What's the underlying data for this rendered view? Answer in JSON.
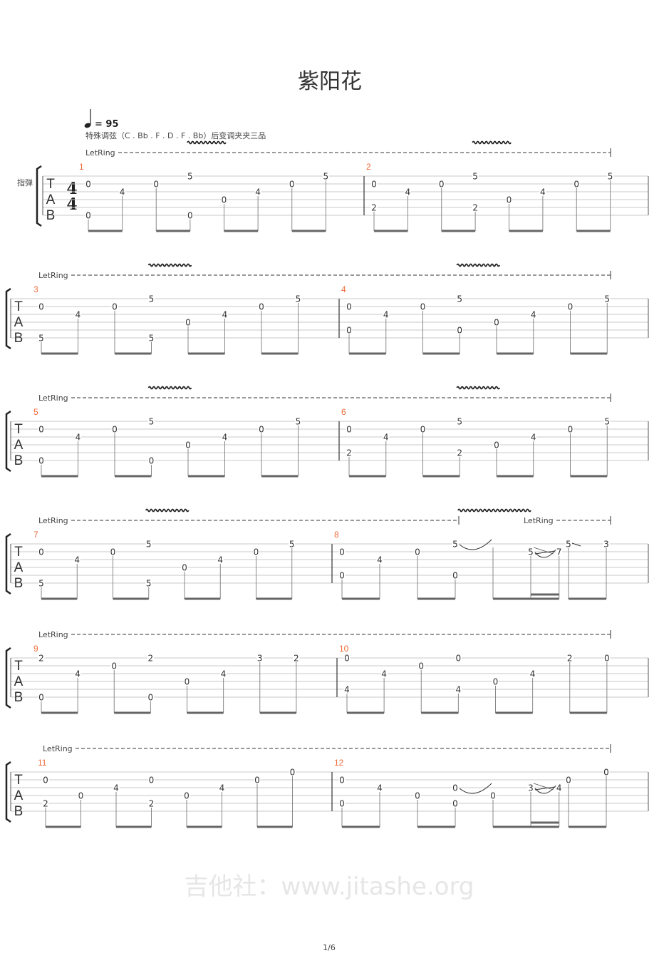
{
  "title": "紫阳花",
  "tempo": {
    "icon": "quarter-note-icon",
    "label": "= 95"
  },
  "tuning_note": "特殊调弦（C . Bb . F . D . F . Bb）后变调夹夹三品",
  "instrument": "指弹",
  "time_signature": {
    "top": "4",
    "bottom": "4"
  },
  "tab_clef": [
    "T",
    "A",
    "B"
  ],
  "let_ring_label": "LetRing",
  "watermark": "吉他社：www.jitashe.org",
  "page": "1/6",
  "colors": {
    "measure_number": "#f26b3a",
    "notes": "#333333",
    "staff": "#c8c8c8",
    "beam": "#666666"
  },
  "systems": [
    {
      "measures": [
        1,
        2
      ],
      "let_ring": [
        {
          "from": [
            1,
            0
          ],
          "to": [
            2,
            8
          ]
        }
      ]
    },
    {
      "measures": [
        3,
        4
      ],
      "let_ring": [
        {
          "from": [
            3,
            0
          ],
          "to": [
            4,
            8
          ]
        }
      ]
    },
    {
      "measures": [
        5,
        6
      ],
      "let_ring": [
        {
          "from": [
            5,
            0
          ],
          "to": [
            6,
            8
          ]
        }
      ]
    },
    {
      "measures": [
        7,
        8
      ],
      "let_ring": [
        {
          "from": [
            7,
            0
          ],
          "to": [
            8,
            3
          ]
        },
        {
          "from": [
            8,
            5
          ],
          "to": [
            8,
            8
          ]
        }
      ]
    },
    {
      "measures": [
        9,
        10
      ],
      "let_ring": [
        {
          "from": [
            9,
            0
          ],
          "to": [
            10,
            8
          ]
        }
      ]
    },
    {
      "measures": [
        11,
        12
      ],
      "let_ring": [
        {
          "from": [
            11,
            0
          ],
          "to": [
            12,
            8
          ]
        }
      ]
    }
  ],
  "measures": [
    {
      "number": "1",
      "vibrato": [
        3,
        4
      ],
      "events": [
        {
          "pos": 0,
          "notes": [
            {
              "s": 2,
              "f": "0"
            },
            {
              "s": 6,
              "f": "0"
            }
          ]
        },
        {
          "pos": 1,
          "notes": [
            {
              "s": 3,
              "f": "4"
            }
          ]
        },
        {
          "pos": 2,
          "notes": [
            {
              "s": 2,
              "f": "0"
            }
          ]
        },
        {
          "pos": 3,
          "notes": [
            {
              "s": 1,
              "f": "5"
            },
            {
              "s": 6,
              "f": "0"
            }
          ]
        },
        {
          "pos": 4,
          "notes": [
            {
              "s": 4,
              "f": "0"
            }
          ]
        },
        {
          "pos": 5,
          "notes": [
            {
              "s": 3,
              "f": "4"
            }
          ]
        },
        {
          "pos": 6,
          "notes": [
            {
              "s": 2,
              "f": "0"
            }
          ]
        },
        {
          "pos": 7,
          "notes": [
            {
              "s": 1,
              "f": "5"
            }
          ]
        }
      ]
    },
    {
      "number": "2",
      "vibrato": [
        3,
        4
      ],
      "events": [
        {
          "pos": 0,
          "notes": [
            {
              "s": 2,
              "f": "0"
            },
            {
              "s": 5,
              "f": "2"
            }
          ]
        },
        {
          "pos": 1,
          "notes": [
            {
              "s": 3,
              "f": "4"
            }
          ]
        },
        {
          "pos": 2,
          "notes": [
            {
              "s": 2,
              "f": "0"
            }
          ]
        },
        {
          "pos": 3,
          "notes": [
            {
              "s": 1,
              "f": "5"
            },
            {
              "s": 5,
              "f": "2"
            }
          ]
        },
        {
          "pos": 4,
          "notes": [
            {
              "s": 4,
              "f": "0"
            }
          ]
        },
        {
          "pos": 5,
          "notes": [
            {
              "s": 3,
              "f": "4"
            }
          ]
        },
        {
          "pos": 6,
          "notes": [
            {
              "s": 2,
              "f": "0"
            }
          ]
        },
        {
          "pos": 7,
          "notes": [
            {
              "s": 1,
              "f": "5"
            }
          ]
        }
      ]
    },
    {
      "number": "3",
      "vibrato": [
        3,
        3.8
      ],
      "events": [
        {
          "pos": 0,
          "notes": [
            {
              "s": 2,
              "f": "0"
            },
            {
              "s": 6,
              "f": "5"
            }
          ]
        },
        {
          "pos": 1,
          "notes": [
            {
              "s": 3,
              "f": "4"
            }
          ]
        },
        {
          "pos": 2,
          "notes": [
            {
              "s": 2,
              "f": "0"
            }
          ]
        },
        {
          "pos": 3,
          "notes": [
            {
              "s": 1,
              "f": "5"
            },
            {
              "s": 6,
              "f": "5"
            }
          ]
        },
        {
          "pos": 4,
          "notes": [
            {
              "s": 4,
              "f": "0"
            }
          ]
        },
        {
          "pos": 5,
          "notes": [
            {
              "s": 3,
              "f": "4"
            }
          ]
        },
        {
          "pos": 6,
          "notes": [
            {
              "s": 2,
              "f": "0"
            }
          ]
        },
        {
          "pos": 7,
          "notes": [
            {
              "s": 1,
              "f": "5"
            }
          ]
        }
      ]
    },
    {
      "number": "4",
      "vibrato": [
        3,
        3.8
      ],
      "events": [
        {
          "pos": 0,
          "notes": [
            {
              "s": 2,
              "f": "0"
            },
            {
              "s": 5,
              "f": "0"
            }
          ]
        },
        {
          "pos": 1,
          "notes": [
            {
              "s": 3,
              "f": "4"
            }
          ]
        },
        {
          "pos": 2,
          "notes": [
            {
              "s": 2,
              "f": "0"
            }
          ]
        },
        {
          "pos": 3,
          "notes": [
            {
              "s": 1,
              "f": "5"
            },
            {
              "s": 5,
              "f": "0"
            }
          ]
        },
        {
          "pos": 4,
          "notes": [
            {
              "s": 4,
              "f": "0"
            }
          ]
        },
        {
          "pos": 5,
          "notes": [
            {
              "s": 3,
              "f": "4"
            }
          ]
        },
        {
          "pos": 6,
          "notes": [
            {
              "s": 2,
              "f": "0"
            }
          ]
        },
        {
          "pos": 7,
          "notes": [
            {
              "s": 1,
              "f": "5"
            }
          ]
        }
      ]
    },
    {
      "number": "5",
      "vibrato": [
        3,
        3.8
      ],
      "events": [
        {
          "pos": 0,
          "notes": [
            {
              "s": 2,
              "f": "0"
            },
            {
              "s": 6,
              "f": "0"
            }
          ]
        },
        {
          "pos": 1,
          "notes": [
            {
              "s": 3,
              "f": "4"
            }
          ]
        },
        {
          "pos": 2,
          "notes": [
            {
              "s": 2,
              "f": "0"
            }
          ]
        },
        {
          "pos": 3,
          "notes": [
            {
              "s": 1,
              "f": "5"
            },
            {
              "s": 6,
              "f": "0"
            }
          ]
        },
        {
          "pos": 4,
          "notes": [
            {
              "s": 4,
              "f": "0"
            }
          ]
        },
        {
          "pos": 5,
          "notes": [
            {
              "s": 3,
              "f": "4"
            }
          ]
        },
        {
          "pos": 6,
          "notes": [
            {
              "s": 2,
              "f": "0"
            }
          ]
        },
        {
          "pos": 7,
          "notes": [
            {
              "s": 1,
              "f": "5"
            }
          ]
        }
      ]
    },
    {
      "number": "6",
      "vibrato": [
        3,
        3.8
      ],
      "events": [
        {
          "pos": 0,
          "notes": [
            {
              "s": 2,
              "f": "0"
            },
            {
              "s": 5,
              "f": "2"
            }
          ]
        },
        {
          "pos": 1,
          "notes": [
            {
              "s": 3,
              "f": "4"
            }
          ]
        },
        {
          "pos": 2,
          "notes": [
            {
              "s": 2,
              "f": "0"
            }
          ]
        },
        {
          "pos": 3,
          "notes": [
            {
              "s": 1,
              "f": "5"
            },
            {
              "s": 5,
              "f": "2"
            }
          ]
        },
        {
          "pos": 4,
          "notes": [
            {
              "s": 4,
              "f": "0"
            }
          ]
        },
        {
          "pos": 5,
          "notes": [
            {
              "s": 3,
              "f": "4"
            }
          ]
        },
        {
          "pos": 6,
          "notes": [
            {
              "s": 2,
              "f": "0"
            }
          ]
        },
        {
          "pos": 7,
          "notes": [
            {
              "s": 1,
              "f": "5"
            }
          ]
        }
      ]
    },
    {
      "number": "7",
      "vibrato": [
        3,
        3.8
      ],
      "events": [
        {
          "pos": 0,
          "notes": [
            {
              "s": 2,
              "f": "0"
            },
            {
              "s": 6,
              "f": "5"
            }
          ]
        },
        {
          "pos": 1,
          "notes": [
            {
              "s": 3,
              "f": "4"
            }
          ]
        },
        {
          "pos": 2,
          "notes": [
            {
              "s": 2,
              "f": "0"
            }
          ]
        },
        {
          "pos": 3,
          "notes": [
            {
              "s": 1,
              "f": "5"
            },
            {
              "s": 6,
              "f": "5"
            }
          ]
        },
        {
          "pos": 4,
          "notes": [
            {
              "s": 4,
              "f": "0"
            }
          ]
        },
        {
          "pos": 5,
          "notes": [
            {
              "s": 3,
              "f": "4"
            }
          ]
        },
        {
          "pos": 6,
          "notes": [
            {
              "s": 2,
              "f": "0"
            }
          ]
        },
        {
          "pos": 7,
          "notes": [
            {
              "s": 1,
              "f": "5"
            }
          ]
        }
      ]
    },
    {
      "number": "8",
      "vibrato": [
        2.9,
        4.7
      ],
      "events": [
        {
          "pos": 0,
          "notes": [
            {
              "s": 2,
              "f": "0"
            },
            {
              "s": 5,
              "f": "0"
            }
          ]
        },
        {
          "pos": 1,
          "notes": [
            {
              "s": 3,
              "f": "4"
            }
          ]
        },
        {
          "pos": 2,
          "notes": [
            {
              "s": 2,
              "f": "0"
            }
          ]
        },
        {
          "pos": 3,
          "notes": [
            {
              "s": 1,
              "f": "5",
              "tech": "tie"
            },
            {
              "s": 5,
              "f": "0"
            }
          ]
        },
        {
          "pos": 4,
          "notes": [
            {
              "s": 1,
              "f": "5",
              "tied": true
            }
          ]
        },
        {
          "pos": 5,
          "notes": [
            {
              "s": 2,
              "f": "5",
              "tech": "hammer-slide"
            }
          ]
        },
        {
          "pos": 5.5,
          "notes": [
            {
              "s": 2,
              "f": "7"
            }
          ]
        },
        {
          "pos": 6,
          "notes": [
            {
              "s": 1,
              "f": "5",
              "tech": "slide-out"
            }
          ]
        },
        {
          "pos": 7,
          "notes": [
            {
              "s": 1,
              "f": "3"
            }
          ]
        }
      ]
    },
    {
      "number": "9",
      "vibrato": [],
      "events": [
        {
          "pos": 0,
          "notes": [
            {
              "s": 1,
              "f": "2"
            },
            {
              "s": 6,
              "f": "0"
            }
          ]
        },
        {
          "pos": 1,
          "notes": [
            {
              "s": 3,
              "f": "4"
            }
          ]
        },
        {
          "pos": 2,
          "notes": [
            {
              "s": 2,
              "f": "0"
            }
          ]
        },
        {
          "pos": 3,
          "notes": [
            {
              "s": 1,
              "f": "2"
            },
            {
              "s": 6,
              "f": "0"
            }
          ]
        },
        {
          "pos": 4,
          "notes": [
            {
              "s": 4,
              "f": "0"
            }
          ]
        },
        {
          "pos": 5,
          "notes": [
            {
              "s": 3,
              "f": "4"
            }
          ]
        },
        {
          "pos": 6,
          "notes": [
            {
              "s": 1,
              "f": "3"
            }
          ]
        },
        {
          "pos": 7,
          "notes": [
            {
              "s": 1,
              "f": "2"
            }
          ]
        }
      ]
    },
    {
      "number": "10",
      "vibrato": [],
      "events": [
        {
          "pos": 0,
          "notes": [
            {
              "s": 1,
              "f": "0"
            },
            {
              "s": 5,
              "f": "4"
            }
          ]
        },
        {
          "pos": 1,
          "notes": [
            {
              "s": 3,
              "f": "4"
            }
          ]
        },
        {
          "pos": 2,
          "notes": [
            {
              "s": 2,
              "f": "0"
            }
          ]
        },
        {
          "pos": 3,
          "notes": [
            {
              "s": 1,
              "f": "0"
            },
            {
              "s": 5,
              "f": "4"
            }
          ]
        },
        {
          "pos": 4,
          "notes": [
            {
              "s": 4,
              "f": "0"
            }
          ]
        },
        {
          "pos": 5,
          "notes": [
            {
              "s": 3,
              "f": "4"
            }
          ]
        },
        {
          "pos": 6,
          "notes": [
            {
              "s": 1,
              "f": "2"
            }
          ]
        },
        {
          "pos": 7,
          "notes": [
            {
              "s": 1,
              "f": "0"
            }
          ]
        }
      ]
    },
    {
      "number": "11",
      "vibrato": [],
      "events": [
        {
          "pos": 0,
          "notes": [
            {
              "s": 2,
              "f": "0"
            },
            {
              "s": 5,
              "f": "2"
            }
          ]
        },
        {
          "pos": 1,
          "notes": [
            {
              "s": 4,
              "f": "0"
            }
          ]
        },
        {
          "pos": 2,
          "notes": [
            {
              "s": 3,
              "f": "4"
            }
          ]
        },
        {
          "pos": 3,
          "notes": [
            {
              "s": 2,
              "f": "0"
            },
            {
              "s": 5,
              "f": "2"
            }
          ]
        },
        {
          "pos": 4,
          "notes": [
            {
              "s": 4,
              "f": "0"
            }
          ]
        },
        {
          "pos": 5,
          "notes": [
            {
              "s": 3,
              "f": "4"
            }
          ]
        },
        {
          "pos": 6,
          "notes": [
            {
              "s": 2,
              "f": "0"
            }
          ]
        },
        {
          "pos": 7,
          "notes": [
            {
              "s": 1,
              "f": "0"
            }
          ]
        }
      ]
    },
    {
      "number": "12",
      "vibrato": [],
      "events": [
        {
          "pos": 0,
          "notes": [
            {
              "s": 2,
              "f": "0"
            },
            {
              "s": 5,
              "f": "0"
            }
          ]
        },
        {
          "pos": 1,
          "notes": [
            {
              "s": 3,
              "f": "4"
            }
          ]
        },
        {
          "pos": 2,
          "notes": [
            {
              "s": 4,
              "f": "0"
            }
          ]
        },
        {
          "pos": 3,
          "notes": [
            {
              "s": 3,
              "f": "0",
              "tech": "tie"
            },
            {
              "s": 5,
              "f": "0"
            }
          ]
        },
        {
          "pos": 4,
          "notes": [
            {
              "s": 3,
              "f": "0",
              "tied": true
            },
            {
              "s": 4,
              "f": "0"
            }
          ]
        },
        {
          "pos": 5,
          "notes": [
            {
              "s": 3,
              "f": "3",
              "tech": "hammer-slide"
            }
          ]
        },
        {
          "pos": 5.5,
          "notes": [
            {
              "s": 3,
              "f": "4"
            }
          ]
        },
        {
          "pos": 6,
          "notes": [
            {
              "s": 2,
              "f": "0"
            }
          ]
        },
        {
          "pos": 7,
          "notes": [
            {
              "s": 1,
              "f": "0"
            }
          ]
        }
      ]
    }
  ]
}
